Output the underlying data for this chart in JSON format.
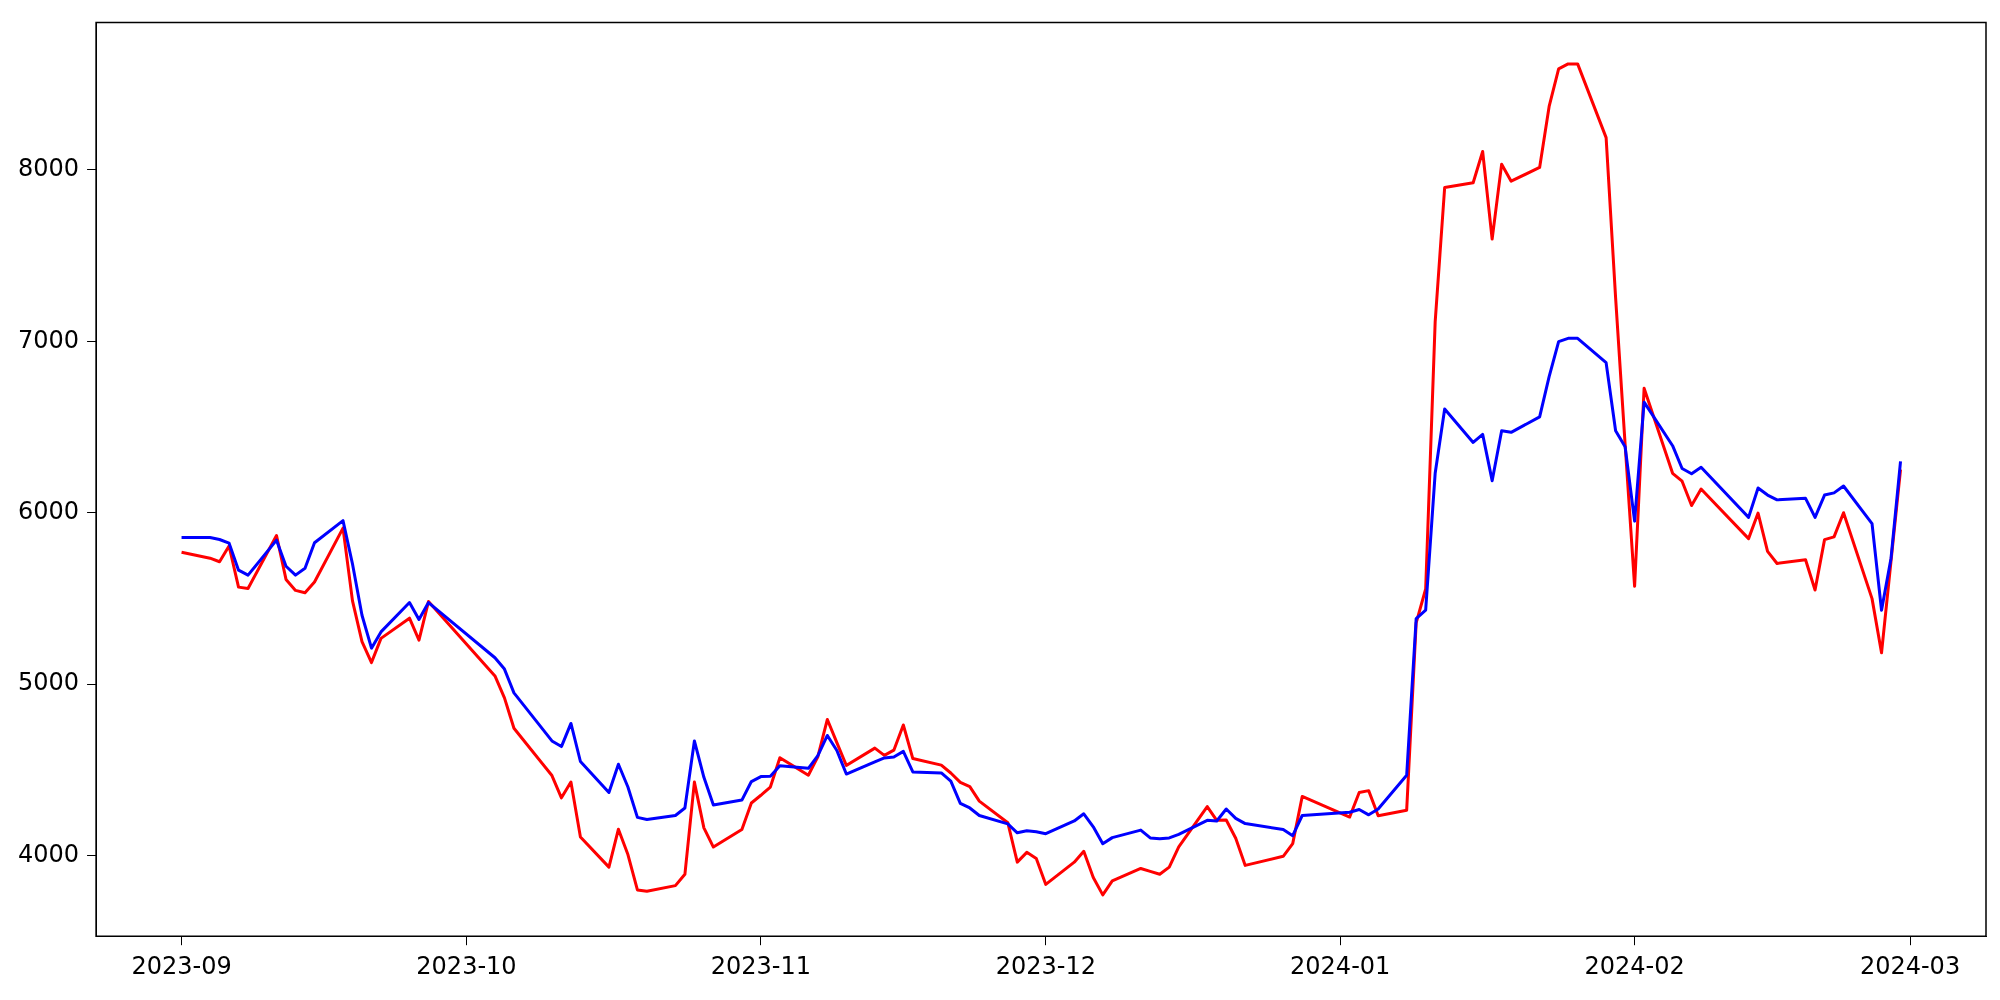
{
  "chart_data": {
    "type": "line",
    "x": [
      "2023-09-01",
      "2023-09-04",
      "2023-09-05",
      "2023-09-06",
      "2023-09-07",
      "2023-09-08",
      "2023-09-11",
      "2023-09-12",
      "2023-09-13",
      "2023-09-14",
      "2023-09-15",
      "2023-09-18",
      "2023-09-19",
      "2023-09-20",
      "2023-09-21",
      "2023-09-22",
      "2023-09-25",
      "2023-09-26",
      "2023-09-27",
      "2023-10-04",
      "2023-10-05",
      "2023-10-06",
      "2023-10-10",
      "2023-10-11",
      "2023-10-12",
      "2023-10-13",
      "2023-10-16",
      "2023-10-17",
      "2023-10-18",
      "2023-10-19",
      "2023-10-20",
      "2023-10-23",
      "2023-10-24",
      "2023-10-25",
      "2023-10-26",
      "2023-10-27",
      "2023-10-30",
      "2023-10-31",
      "2023-11-01",
      "2023-11-02",
      "2023-11-03",
      "2023-11-06",
      "2023-11-07",
      "2023-11-08",
      "2023-11-09",
      "2023-11-10",
      "2023-11-13",
      "2023-11-14",
      "2023-11-15",
      "2023-11-16",
      "2023-11-17",
      "2023-11-20",
      "2023-11-21",
      "2023-11-22",
      "2023-11-23",
      "2023-11-24",
      "2023-11-27",
      "2023-11-28",
      "2023-11-29",
      "2023-11-30",
      "2023-12-01",
      "2023-12-04",
      "2023-12-05",
      "2023-12-06",
      "2023-12-07",
      "2023-12-08",
      "2023-12-11",
      "2023-12-12",
      "2023-12-13",
      "2023-12-14",
      "2023-12-15",
      "2023-12-18",
      "2023-12-19",
      "2023-12-20",
      "2023-12-21",
      "2023-12-22",
      "2023-12-26",
      "2023-12-27",
      "2023-12-28",
      "2024-01-02",
      "2024-01-03",
      "2024-01-04",
      "2024-01-05",
      "2024-01-08",
      "2024-01-09",
      "2024-01-10",
      "2024-01-11",
      "2024-01-12",
      "2024-01-15",
      "2024-01-16",
      "2024-01-17",
      "2024-01-18",
      "2024-01-19",
      "2024-01-22",
      "2024-01-23",
      "2024-01-24",
      "2024-01-25",
      "2024-01-26",
      "2024-01-29",
      "2024-01-30",
      "2024-01-31",
      "2024-02-01",
      "2024-02-02",
      "2024-02-05",
      "2024-02-06",
      "2024-02-07",
      "2024-02-08",
      "2024-02-13",
      "2024-02-14",
      "2024-02-15",
      "2024-02-16",
      "2024-02-19",
      "2024-02-20",
      "2024-02-21",
      "2024-02-22",
      "2024-02-23",
      "2024-02-26",
      "2024-02-27",
      "2024-02-28",
      "2024-02-29"
    ],
    "series": [
      {
        "color": "#ff0000",
        "values": [
          5770,
          5735,
          5714,
          5806,
          5566,
          5558,
          5867,
          5611,
          5547,
          5533,
          5596,
          5910,
          5486,
          5248,
          5126,
          5267,
          5385,
          5257,
          5482,
          5048,
          4920,
          4743,
          4467,
          4337,
          4429,
          4109,
          3933,
          4154,
          4006,
          3800,
          3792,
          3825,
          3891,
          4429,
          4162,
          4050,
          4152,
          4307,
          4352,
          4400,
          4571,
          4469,
          4577,
          4794,
          4659,
          4526,
          4627,
          4585,
          4615,
          4762,
          4566,
          4528,
          4482,
          4427,
          4402,
          4318,
          4192,
          3962,
          4019,
          3983,
          3832,
          3962,
          4025,
          3872,
          3771,
          3853,
          3925,
          3908,
          3891,
          3933,
          4051,
          4286,
          4206,
          4208,
          4101,
          3943,
          3996,
          4070,
          4345,
          4225,
          4368,
          4379,
          4232,
          4265,
          5358,
          5555,
          7113,
          7897,
          7925,
          8107,
          7596,
          8033,
          7934,
          8014,
          8370,
          8589,
          8618,
          8618,
          8188,
          7253,
          6400,
          5571,
          6726,
          6230,
          6184,
          6042,
          6138,
          5849,
          5998,
          5775,
          5704,
          5726,
          5549,
          5843,
          5859,
          6000,
          5499,
          5183,
          5719,
          6252
        ]
      },
      {
        "color": "#0000ff",
        "values": [
          5855,
          5855,
          5844,
          5823,
          5665,
          5636,
          5840,
          5688,
          5636,
          5676,
          5825,
          5954,
          5701,
          5402,
          5210,
          5305,
          5476,
          5377,
          5476,
          5154,
          5088,
          4949,
          4669,
          4636,
          4771,
          4549,
          4368,
          4533,
          4400,
          4223,
          4211,
          4234,
          4278,
          4669,
          4457,
          4295,
          4324,
          4432,
          4461,
          4463,
          4524,
          4509,
          4583,
          4701,
          4613,
          4476,
          4547,
          4570,
          4575,
          4608,
          4488,
          4482,
          4434,
          4305,
          4278,
          4234,
          4185,
          4133,
          4145,
          4139,
          4128,
          4202,
          4244,
          4168,
          4069,
          4105,
          4149,
          4103,
          4099,
          4103,
          4124,
          4206,
          4202,
          4272,
          4217,
          4187,
          4152,
          4116,
          4234,
          4253,
          4269,
          4238,
          4272,
          4469,
          5383,
          5432,
          6230,
          6605,
          6410,
          6457,
          6187,
          6478,
          6469,
          6559,
          6794,
          6998,
          7017,
          7017,
          6875,
          6478,
          6385,
          5951,
          6645,
          6391,
          6258,
          6227,
          6265,
          5973,
          6144,
          6103,
          6075,
          6084,
          5973,
          6103,
          6116,
          6156,
          5936,
          5431,
          5735,
          6299
        ]
      }
    ],
    "xlim": [
      "2023-08-23",
      "2024-03-09"
    ],
    "xticks": [
      "2023-09",
      "2023-10",
      "2023-11",
      "2023-12",
      "2024-01",
      "2024-02",
      "2024-03"
    ],
    "ylim": [
      3530,
      8860
    ],
    "yticks": [
      4000,
      5000,
      6000,
      7000,
      8000
    ]
  }
}
